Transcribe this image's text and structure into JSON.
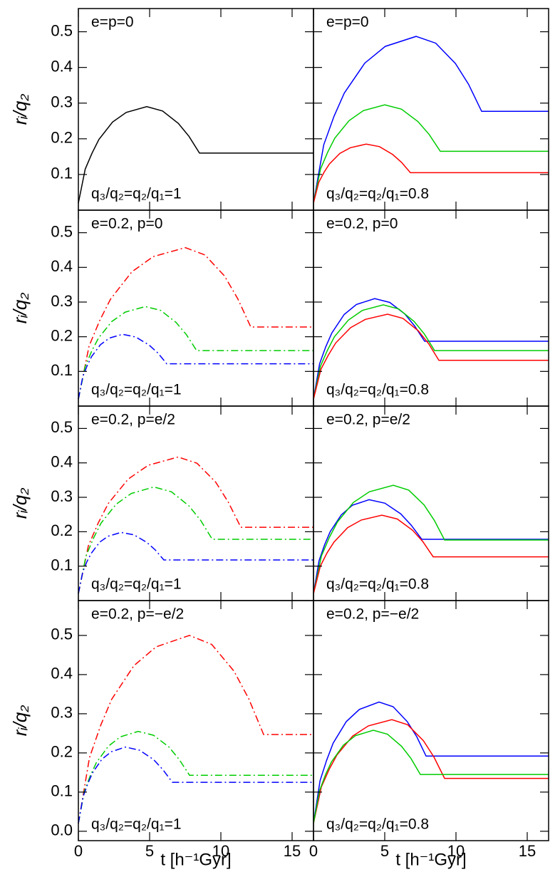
{
  "chart_data": [
    {
      "type": "line",
      "ylabel": "rᵢ/q₂",
      "annotations": [
        "e=p=0",
        "q₃/q₂=q₂/q₁=1"
      ],
      "xlim": [
        0,
        16.5
      ],
      "ylim": [
        0,
        0.565
      ],
      "xticks": [
        0,
        5,
        10,
        15
      ],
      "yticks": [
        0.1,
        0.2,
        0.3,
        0.4,
        0.5
      ],
      "series": [
        {
          "color": "#000000",
          "dash": "solid",
          "x": [
            0,
            0.48,
            0.96,
            1.44,
            2.4,
            3.36,
            4.8,
            5.91,
            7.02,
            7.76,
            8.5,
            16.5
          ],
          "values": [
            0.02,
            0.115,
            0.16,
            0.198,
            0.247,
            0.274,
            0.29,
            0.278,
            0.243,
            0.207,
            0.16,
            0.16
          ]
        }
      ]
    },
    {
      "type": "line",
      "annotations": [
        "e=p=0",
        "q₃/q₂=q₂/q₁=0.8"
      ],
      "xlim": [
        0,
        16.5
      ],
      "ylim": [
        0,
        0.565
      ],
      "xticks": [
        0,
        5,
        10,
        15
      ],
      "yticks": [
        0.1,
        0.2,
        0.3,
        0.4,
        0.5
      ],
      "series": [
        {
          "color": "#0000ff",
          "dash": "solid",
          "x": [
            0,
            0.72,
            1.44,
            2.16,
            3.6,
            5.04,
            7.2,
            8.58,
            9.96,
            10.88,
            11.8,
            16.5
          ],
          "values": [
            0.02,
            0.183,
            0.263,
            0.328,
            0.412,
            0.459,
            0.487,
            0.468,
            0.411,
            0.353,
            0.277,
            0.277
          ]
        },
        {
          "color": "#00cc00",
          "dash": "solid",
          "x": [
            0,
            0.5,
            1,
            1.5,
            2.5,
            3.5,
            5,
            6.17,
            7.34,
            8.12,
            8.9,
            16.5
          ],
          "values": [
            0.02,
            0.116,
            0.163,
            0.202,
            0.251,
            0.279,
            0.295,
            0.283,
            0.248,
            0.212,
            0.165,
            0.165
          ]
        },
        {
          "color": "#ff0000",
          "dash": "solid",
          "x": [
            0,
            0.37,
            0.74,
            1.11,
            1.85,
            2.59,
            3.7,
            4.63,
            5.56,
            6.18,
            6.8,
            16.5
          ],
          "values": [
            0.02,
            0.078,
            0.106,
            0.129,
            0.159,
            0.175,
            0.185,
            0.178,
            0.156,
            0.134,
            0.105,
            0.105
          ]
        }
      ]
    },
    {
      "type": "line",
      "ylabel": "rᵢ/q₂",
      "annotations": [
        "e=0.2,  p=0",
        "q₃/q₂=q₂/q₁=1"
      ],
      "xlim": [
        0,
        16.5
      ],
      "ylim": [
        0,
        0.565
      ],
      "xticks": [
        0,
        5,
        10,
        15
      ],
      "yticks": [
        0.1,
        0.2,
        0.3,
        0.4,
        0.5
      ],
      "series": [
        {
          "color": "#ff0000",
          "dash": "dash-dot",
          "x": [
            0,
            0.75,
            1.5,
            2.25,
            3.75,
            5.25,
            7.5,
            8.88,
            10.26,
            11.18,
            12.1,
            16.5
          ],
          "values": [
            0.02,
            0.173,
            0.247,
            0.308,
            0.387,
            0.431,
            0.457,
            0.436,
            0.375,
            0.31,
            0.228,
            0.228
          ]
        },
        {
          "color": "#00cc00",
          "dash": "dash-dot",
          "x": [
            0,
            0.47,
            0.94,
            1.41,
            2.35,
            3.29,
            4.7,
            5.78,
            6.86,
            7.58,
            8.3,
            16.5
          ],
          "values": [
            0.02,
            0.113,
            0.159,
            0.196,
            0.244,
            0.271,
            0.287,
            0.276,
            0.241,
            0.206,
            0.16,
            0.16
          ]
        },
        {
          "color": "#0000ff",
          "dash": "dash-dot",
          "x": [
            0,
            0.31,
            0.62,
            0.93,
            1.55,
            2.17,
            3.1,
            4.03,
            4.96,
            5.58,
            6.2,
            16.5
          ],
          "values": [
            0.02,
            0.085,
            0.117,
            0.143,
            0.177,
            0.196,
            0.207,
            0.199,
            0.176,
            0.153,
            0.122,
            0.122
          ]
        }
      ]
    },
    {
      "type": "line",
      "annotations": [
        "e=0.2,  p=0",
        "q₃/q₂=q₂/q₁=0.8"
      ],
      "xlim": [
        0,
        16.5
      ],
      "ylim": [
        0,
        0.565
      ],
      "xticks": [
        0,
        5,
        10,
        15
      ],
      "yticks": [
        0.1,
        0.2,
        0.3,
        0.4,
        0.5
      ],
      "series": [
        {
          "color": "#0000ff",
          "dash": "solid",
          "x": [
            0,
            0.43,
            0.86,
            1.29,
            2.15,
            3.01,
            4.3,
            5.35,
            6.4,
            7.1,
            7.8,
            16.5
          ],
          "values": [
            0.02,
            0.122,
            0.171,
            0.211,
            0.264,
            0.293,
            0.31,
            0.299,
            0.266,
            0.231,
            0.187,
            0.187
          ]
        },
        {
          "color": "#00cc00",
          "dash": "solid",
          "x": [
            0,
            0.49,
            0.98,
            1.47,
            2.45,
            3.43,
            4.9,
            5.98,
            7.06,
            7.78,
            8.5,
            16.5
          ],
          "values": [
            0.02,
            0.115,
            0.161,
            0.2,
            0.248,
            0.276,
            0.292,
            0.28,
            0.244,
            0.208,
            0.16,
            0.16
          ]
        },
        {
          "color": "#ff0000",
          "dash": "solid",
          "x": [
            0,
            0.52,
            1.04,
            1.56,
            2.6,
            3.64,
            5.2,
            6.28,
            7.36,
            8.08,
            8.8,
            16.5
          ],
          "values": [
            0.02,
            0.106,
            0.147,
            0.182,
            0.226,
            0.25,
            0.265,
            0.253,
            0.217,
            0.18,
            0.132,
            0.132
          ]
        }
      ]
    },
    {
      "type": "line",
      "ylabel": "rᵢ/q₂",
      "annotations": [
        "e=0.2,  p=e/2",
        "q₃/q₂=q₂/q₁=1"
      ],
      "xlim": [
        0,
        16.5
      ],
      "ylim": [
        0,
        0.565
      ],
      "xticks": [
        0,
        5,
        10,
        15
      ],
      "yticks": [
        0.1,
        0.2,
        0.3,
        0.4,
        0.5
      ],
      "series": [
        {
          "color": "#ff0000",
          "dash": "dash-dot",
          "x": [
            0,
            0.7,
            1.4,
            2.1,
            3.5,
            4.9,
            7,
            8.32,
            9.64,
            10.52,
            11.4,
            16.5
          ],
          "values": [
            0.02,
            0.159,
            0.226,
            0.282,
            0.353,
            0.393,
            0.417,
            0.399,
            0.344,
            0.286,
            0.213,
            0.213
          ]
        },
        {
          "color": "#00cc00",
          "dash": "dash-dot",
          "x": [
            0,
            0.53,
            1.06,
            1.59,
            2.65,
            3.71,
            5.3,
            6.53,
            7.76,
            8.58,
            9.4,
            16.5
          ],
          "values": [
            0.02,
            0.129,
            0.181,
            0.225,
            0.28,
            0.311,
            0.33,
            0.316,
            0.275,
            0.233,
            0.178,
            0.178
          ]
        },
        {
          "color": "#0000ff",
          "dash": "dash-dot",
          "x": [
            0,
            0.3,
            0.6,
            0.9,
            1.5,
            2.1,
            3,
            3.9,
            4.8,
            5.4,
            6,
            16.5
          ],
          "values": [
            0.02,
            0.082,
            0.113,
            0.137,
            0.17,
            0.187,
            0.198,
            0.191,
            0.169,
            0.147,
            0.118,
            0.118
          ]
        }
      ]
    },
    {
      "type": "line",
      "annotations": [
        "e=0.2,  p=e/2",
        "q₃/q₂=q₂/q₁=0.8"
      ],
      "xlim": [
        0,
        16.5
      ],
      "ylim": [
        0,
        0.565
      ],
      "xticks": [
        0,
        5,
        10,
        15
      ],
      "yticks": [
        0.1,
        0.2,
        0.3,
        0.4,
        0.5
      ],
      "series": [
        {
          "color": "#0000ff",
          "dash": "solid",
          "x": [
            0,
            0.39,
            0.78,
            1.17,
            1.95,
            2.73,
            3.9,
            5.01,
            6.12,
            6.86,
            7.6,
            16.5
          ],
          "values": [
            0.02,
            0.116,
            0.162,
            0.2,
            0.249,
            0.277,
            0.293,
            0.283,
            0.252,
            0.219,
            0.178,
            0.178
          ]
        },
        {
          "color": "#00cc00",
          "dash": "solid",
          "x": [
            0,
            0.56,
            1.12,
            1.68,
            2.8,
            3.92,
            5.6,
            6.68,
            7.76,
            8.48,
            9.2,
            16.5
          ],
          "values": [
            0.02,
            0.13,
            0.184,
            0.228,
            0.285,
            0.316,
            0.335,
            0.321,
            0.278,
            0.233,
            0.176,
            0.176
          ]
        },
        {
          "color": "#ff0000",
          "dash": "solid",
          "x": [
            0,
            0.48,
            0.96,
            1.44,
            2.4,
            3.36,
            4.8,
            5.88,
            6.96,
            7.68,
            8.4,
            16.5
          ],
          "values": [
            0.02,
            0.1,
            0.139,
            0.17,
            0.212,
            0.234,
            0.248,
            0.237,
            0.204,
            0.171,
            0.127,
            0.127
          ]
        }
      ]
    },
    {
      "type": "line",
      "ylabel": "rᵢ/q₂",
      "xlabel": "t [h⁻¹Gyr]",
      "annotations": [
        "e=0.2,  p=−e/2",
        "q₃/q₂=q₂/q₁=1"
      ],
      "xlim": [
        0,
        16.5
      ],
      "ylim": [
        -0.024,
        0.589
      ],
      "xticks": [
        0,
        5,
        10,
        15
      ],
      "yticks": [
        {
          "value": 0,
          "label": "0.0"
        },
        0.1,
        0.2,
        0.3,
        0.4,
        0.5
      ],
      "series": [
        {
          "color": "#ff0000",
          "dash": "dash-dot",
          "x": [
            0,
            0.78,
            1.56,
            2.34,
            3.9,
            5.46,
            7.8,
            9.36,
            10.92,
            11.96,
            13,
            16.5
          ],
          "values": [
            0.02,
            0.188,
            0.27,
            0.337,
            0.423,
            0.471,
            0.5,
            0.477,
            0.409,
            0.338,
            0.247,
            0.247
          ]
        },
        {
          "color": "#00cc00",
          "dash": "dash-dot",
          "x": [
            0,
            0.42,
            0.84,
            1.26,
            2.1,
            2.94,
            4.2,
            5.28,
            6.36,
            7.08,
            7.8,
            16.5
          ],
          "values": [
            0.02,
            0.102,
            0.142,
            0.175,
            0.217,
            0.241,
            0.255,
            0.245,
            0.215,
            0.183,
            0.143,
            0.143
          ]
        },
        {
          "color": "#0000ff",
          "dash": "dash-dot",
          "x": [
            0,
            0.33,
            0.66,
            0.99,
            1.65,
            2.31,
            3.3,
            4.29,
            5.28,
            5.94,
            6.6,
            16.5
          ],
          "values": [
            0.02,
            0.088,
            0.121,
            0.149,
            0.184,
            0.203,
            0.215,
            0.207,
            0.183,
            0.157,
            0.125,
            0.125
          ]
        }
      ]
    },
    {
      "type": "line",
      "xlabel": "t [h⁻¹Gyr]",
      "annotations": [
        "e=0.2,  p=−e/2",
        "q₃/q₂=q₂/q₁=0.8"
      ],
      "xlim": [
        0,
        16.5
      ],
      "ylim": [
        -0.024,
        0.589
      ],
      "xticks": [
        0,
        5,
        10,
        15
      ],
      "yticks": [
        {
          "value": 0,
          "label": "0.0"
        },
        0.1,
        0.2,
        0.3,
        0.4,
        0.5
      ],
      "series": [
        {
          "color": "#0000ff",
          "dash": "solid",
          "x": [
            0,
            0.46,
            0.92,
            1.38,
            2.3,
            3.22,
            4.6,
            5.59,
            6.58,
            7.24,
            7.9,
            16.5
          ],
          "values": [
            0.02,
            0.129,
            0.181,
            0.225,
            0.28,
            0.311,
            0.33,
            0.318,
            0.28,
            0.242,
            0.192,
            0.192
          ]
        },
        {
          "color": "#ff0000",
          "dash": "solid",
          "x": [
            0,
            0.55,
            1.1,
            1.65,
            2.75,
            3.85,
            5.5,
            6.61,
            7.72,
            8.46,
            9.2,
            16.5
          ],
          "values": [
            0.02,
            0.113,
            0.158,
            0.195,
            0.243,
            0.269,
            0.285,
            0.272,
            0.231,
            0.189,
            0.135,
            0.135
          ]
        },
        {
          "color": "#00cc00",
          "dash": "solid",
          "x": [
            0,
            0.42,
            0.84,
            1.26,
            2.1,
            2.94,
            4.2,
            5.19,
            6.18,
            6.84,
            7.5,
            16.5
          ],
          "values": [
            0.02,
            0.103,
            0.144,
            0.177,
            0.22,
            0.244,
            0.258,
            0.248,
            0.217,
            0.186,
            0.145,
            0.145
          ]
        }
      ]
    }
  ]
}
